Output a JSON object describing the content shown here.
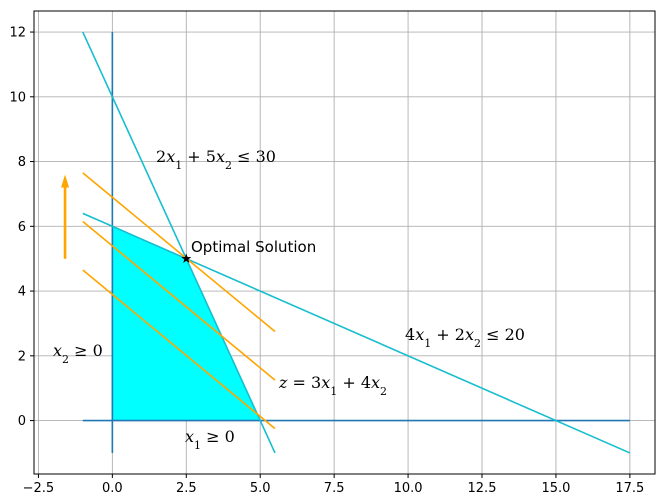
{
  "chart_data": {
    "type": "line",
    "xlim": [
      -2.65,
      18.35
    ],
    "ylim": [
      -1.65,
      12.65
    ],
    "grid": true,
    "x_ticks": [
      -2.5,
      0.0,
      2.5,
      5.0,
      7.5,
      10.0,
      12.5,
      15.0,
      17.5
    ],
    "x_tick_labels": [
      "−2.5",
      "0.0",
      "2.5",
      "5.0",
      "7.5",
      "10.0",
      "12.5",
      "15.0",
      "17.5"
    ],
    "y_ticks": [
      0,
      2,
      4,
      6,
      8,
      10,
      12
    ],
    "y_tick_labels": [
      "0",
      "2",
      "4",
      "6",
      "8",
      "10",
      "12"
    ],
    "colors": {
      "axes_lines": "#1f77b4",
      "constraints": "#17becf",
      "objective": "#ffa500",
      "feasible_fill": "#00ffff"
    },
    "axes_lines": [
      {
        "x": [
          -1,
          17.5
        ],
        "y": [
          0,
          0
        ]
      },
      {
        "x": [
          0,
          0
        ],
        "y": [
          -1,
          12
        ]
      }
    ],
    "constraint_lines": [
      {
        "x": [
          -1,
          5.5
        ],
        "y": [
          12,
          -1
        ]
      },
      {
        "x": [
          -1,
          17.5
        ],
        "y": [
          6.4,
          -1
        ]
      }
    ],
    "objective_lines": [
      {
        "x": [
          -1,
          5.5
        ],
        "y": [
          4.65,
          -0.25
        ]
      },
      {
        "x": [
          -1,
          5.5
        ],
        "y": [
          6.15,
          1.25
        ]
      },
      {
        "x": [
          -1,
          5.5
        ],
        "y": [
          7.65,
          2.75
        ]
      }
    ],
    "feasible_region": {
      "x": [
        0,
        0,
        2.5,
        5
      ],
      "y": [
        0,
        6,
        5,
        0
      ]
    },
    "optimal_point": {
      "x": 2.5,
      "y": 5
    },
    "arrow": {
      "x": -1.6,
      "y_from": 5.0,
      "y_to": 7.6
    },
    "annotations": {
      "opt_label": "Optimal Solution",
      "c1_label": {
        "lhs": "2x1 + 5x2 ≤ 30"
      },
      "c2_label": {
        "lhs": "4x1 + 2x2 ≤ 20"
      },
      "obj_label": {
        "lhs": "z = 3x1 + 4x2"
      },
      "x1_nonneg": "x1 ≥ 0",
      "x2_nonneg": "x2 ≥ 0"
    }
  }
}
